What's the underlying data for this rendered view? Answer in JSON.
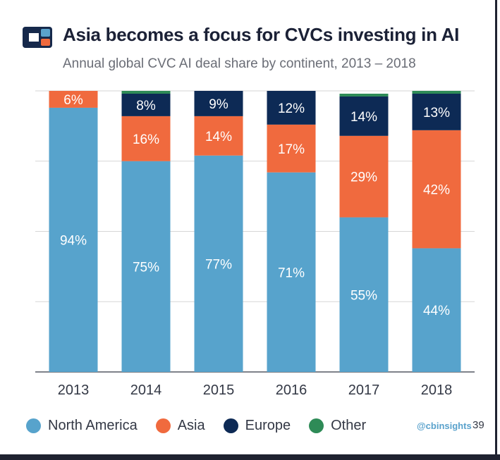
{
  "header": {
    "title": "Asia becomes a focus for CVCs investing in AI",
    "subtitle": "Annual global CVC AI deal share by continent, 2013 – 2018",
    "logo_icon": "cb-insights-logo-icon"
  },
  "chart_data": {
    "type": "bar",
    "stacked": true,
    "title": "Asia becomes a focus for CVCs investing in AI",
    "subtitle": "Annual global CVC AI deal share by continent, 2013 – 2018",
    "categories": [
      "2013",
      "2014",
      "2015",
      "2016",
      "2017",
      "2018"
    ],
    "ylim": [
      0,
      100
    ],
    "grid": true,
    "legend_position": "bottom",
    "series": [
      {
        "name": "North America",
        "color": "#57A3CC",
        "values": [
          94,
          75,
          77,
          71,
          55,
          44
        ],
        "labels": [
          "94%",
          "75%",
          "77%",
          "71%",
          "55%",
          "44%"
        ]
      },
      {
        "name": "Asia",
        "color": "#F06A3E",
        "values": [
          6,
          16,
          14,
          17,
          29,
          42
        ],
        "labels": [
          "6%",
          "16%",
          "14%",
          "17%",
          "29%",
          "42%"
        ]
      },
      {
        "name": "Europe",
        "color": "#0D2A55",
        "values": [
          0,
          8,
          9,
          12,
          14,
          13
        ],
        "labels": [
          "",
          "8%",
          "9%",
          "12%",
          "14%",
          "13%"
        ]
      },
      {
        "name": "Other",
        "color": "#2E8B57",
        "values": [
          0,
          1,
          0,
          0,
          1,
          1
        ],
        "labels": [
          "",
          "",
          "",
          "",
          "",
          ""
        ]
      }
    ]
  },
  "legend": {
    "items": [
      {
        "label": "North America",
        "color": "#57A3CC"
      },
      {
        "label": "Asia",
        "color": "#F06A3E"
      },
      {
        "label": "Europe",
        "color": "#0D2A55"
      },
      {
        "label": "Other",
        "color": "#2E8B57"
      }
    ]
  },
  "footer": {
    "source": "@cbinsights",
    "page_number": "39"
  },
  "colors": {
    "title": "#1B2136",
    "frame": "#1F2230"
  }
}
